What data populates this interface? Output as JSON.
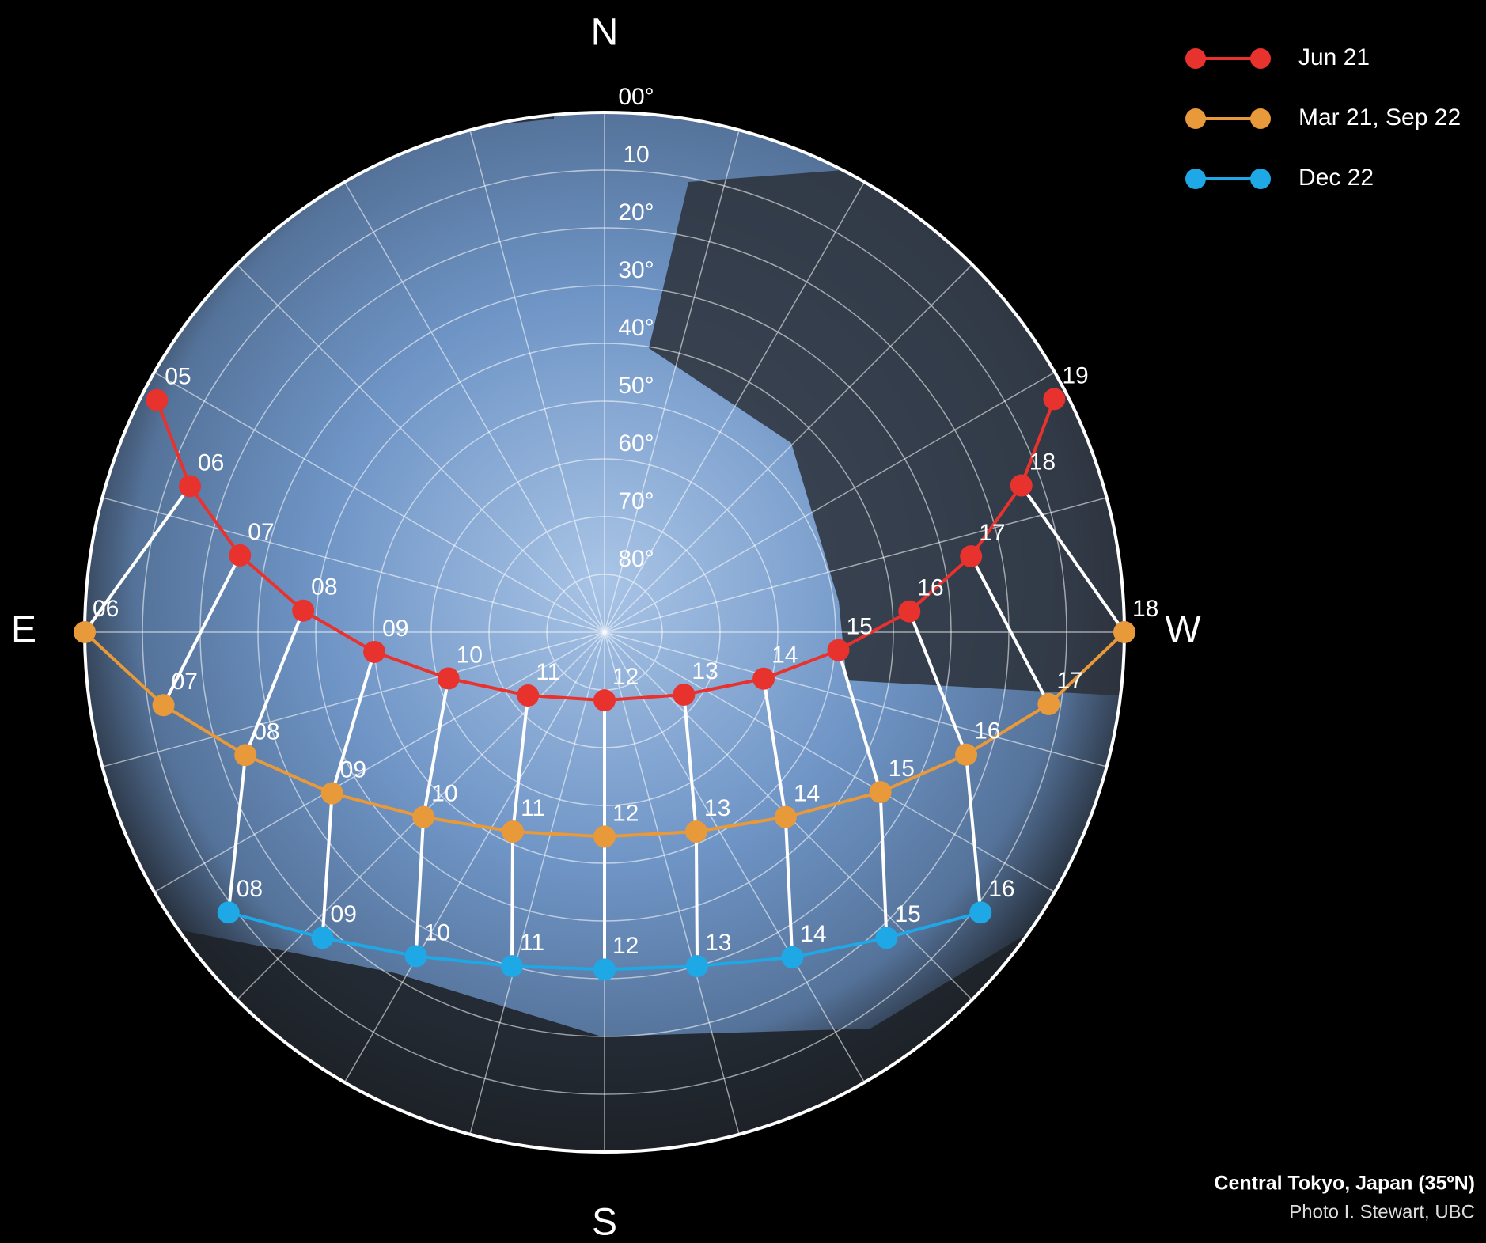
{
  "chart_data": {
    "type": "sunpath",
    "directions": [
      "N",
      "E",
      "S",
      "W"
    ],
    "rlim": [
      0,
      90
    ],
    "rticks": [
      {
        "value": 0,
        "label": "00°"
      },
      10,
      {
        "value": 20,
        "label": "20°"
      },
      {
        "value": 30,
        "label": "30°"
      },
      {
        "value": 40,
        "label": "40°"
      },
      {
        "value": 50,
        "label": "50°"
      },
      {
        "value": 60,
        "label": "60°"
      },
      {
        "value": 70,
        "label": "70°"
      },
      {
        "value": 80,
        "label": "80°"
      }
    ],
    "grid": true,
    "legend": "upper right",
    "series": [
      {
        "name": "Jun 21",
        "color": "#e8322e",
        "labels": [
          "05",
          "06",
          "07",
          "08",
          "09",
          "10",
          "11",
          "12",
          "13",
          "14",
          "15",
          "16",
          "17",
          "18",
          "19"
        ],
        "altitude": [
          2.7,
          13.9,
          25.5,
          37.7,
          50.0,
          61.8,
          72.8,
          78.2,
          72.5,
          61.3,
          49.4,
          37.1,
          25.2,
          13.5,
          2.3
        ],
        "azimuth": [
          62.6,
          70.6,
          78.1,
          85.9,
          94.9,
          106.5,
          129.6,
          180,
          231.8,
          253.7,
          265.6,
          273.9,
          281.7,
          289.4,
          297.4
        ]
      },
      {
        "name": "Mar 21, Sep 22",
        "color": "#e8993a",
        "labels": [
          "06",
          "07",
          "08",
          "09",
          "10",
          "11",
          "12",
          "13",
          "14",
          "15",
          "16",
          "17",
          "18"
        ],
        "altitude": [
          0,
          12.6,
          24.3,
          35.2,
          45.2,
          52.0,
          54.6,
          52.0,
          45.2,
          34.8,
          23.9,
          12.1,
          0
        ],
        "azimuth": [
          90,
          99.4,
          108.9,
          120.6,
          135.6,
          155.3,
          180,
          204.7,
          224.4,
          239.9,
          251.3,
          260.8,
          270
        ]
      },
      {
        "name": "Dec 22",
        "color": "#1fa8e6",
        "labels": [
          "08",
          "09",
          "10",
          "11",
          "12",
          "13",
          "14",
          "15",
          "16"
        ],
        "altitude": [
          8.8,
          18.0,
          25.1,
          30.0,
          31.6,
          30.0,
          25.0,
          18.0,
          8.8
        ],
        "azimuth": [
          126.7,
          137.3,
          149.8,
          164.5,
          180,
          195.5,
          210,
          222.7,
          233.3
        ]
      }
    ],
    "caption": "Central Tokyo, Japan (35ºN)",
    "credit": "Photo I. Stewart, UBC"
  }
}
